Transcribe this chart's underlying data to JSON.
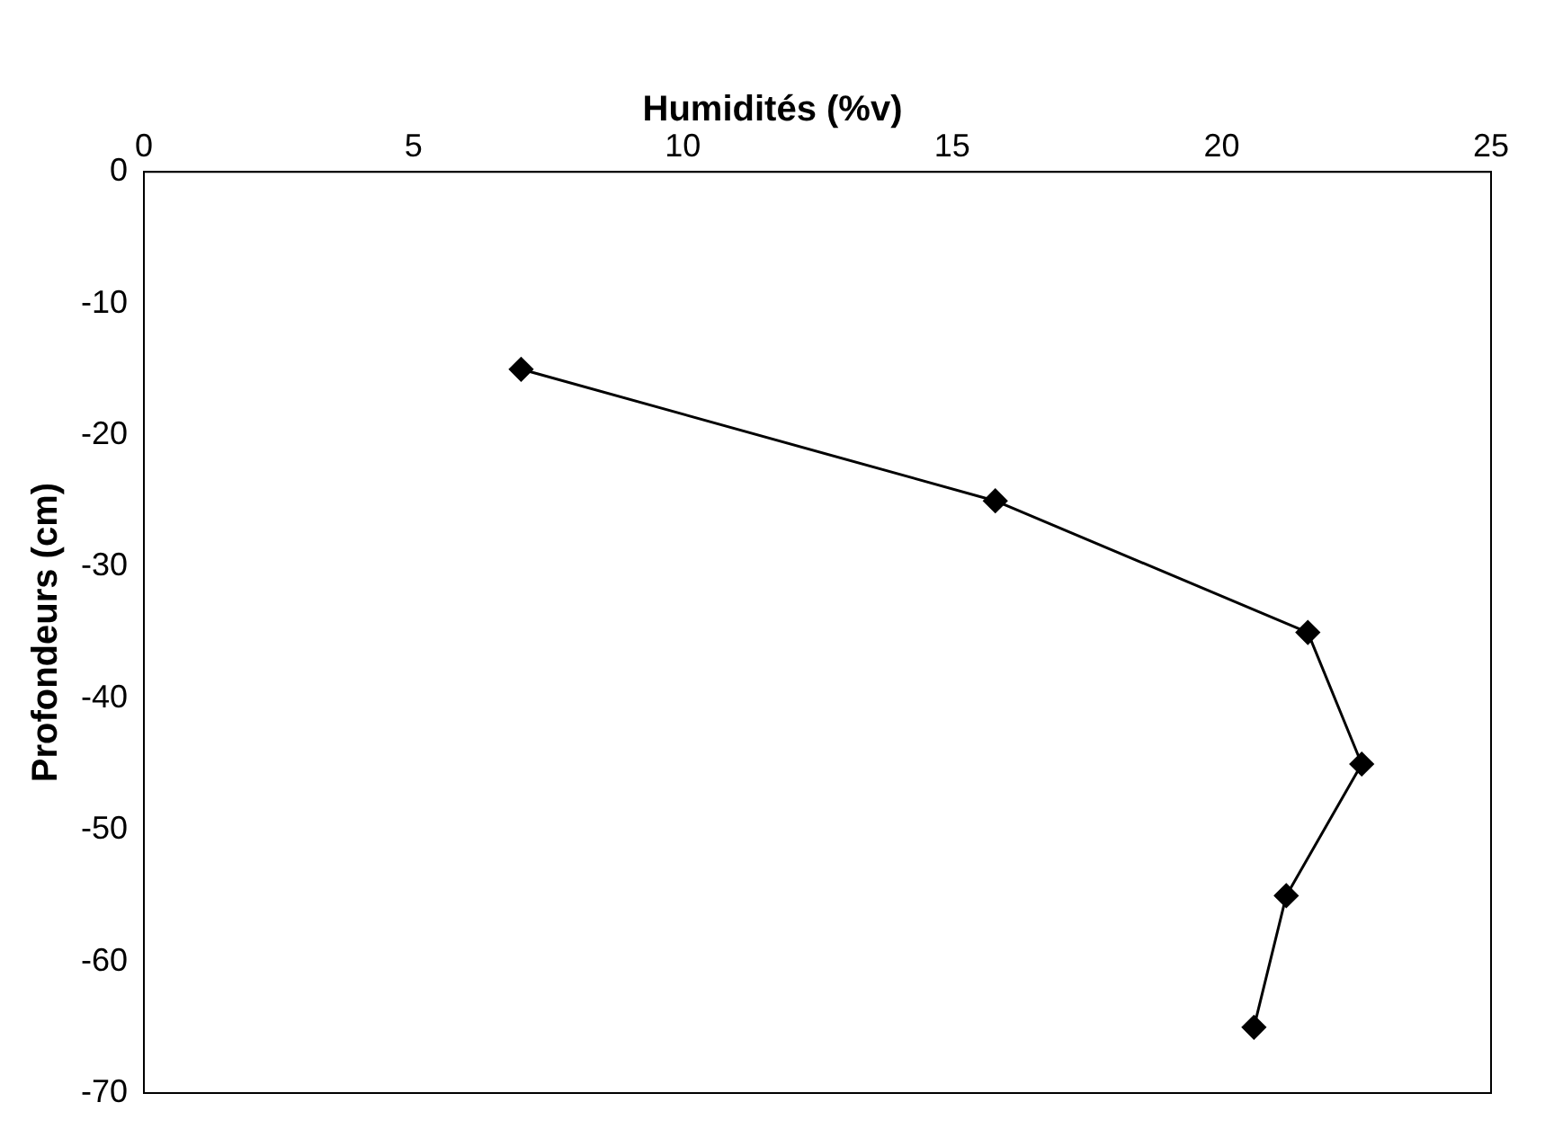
{
  "chart_data": {
    "type": "line",
    "title": "Humidités (%v)",
    "ylabel": "Profondeurs (cm)",
    "x": [
      7,
      15.8,
      21.6,
      22.6,
      21.2,
      20.6
    ],
    "series": [
      {
        "color": "#000000",
        "values": [
          -15,
          -25,
          -35,
          -45,
          -55,
          -65
        ]
      }
    ],
    "xlim": [
      0,
      25
    ],
    "xticks": [
      0,
      5,
      10,
      15,
      20,
      25
    ],
    "ylim": [
      -70,
      0
    ],
    "yticks": [
      -70,
      -60,
      -50,
      -40,
      -30,
      -20,
      -10,
      0
    ],
    "grid": false,
    "legend": false,
    "marker": "diamond",
    "line_style": "solid"
  }
}
